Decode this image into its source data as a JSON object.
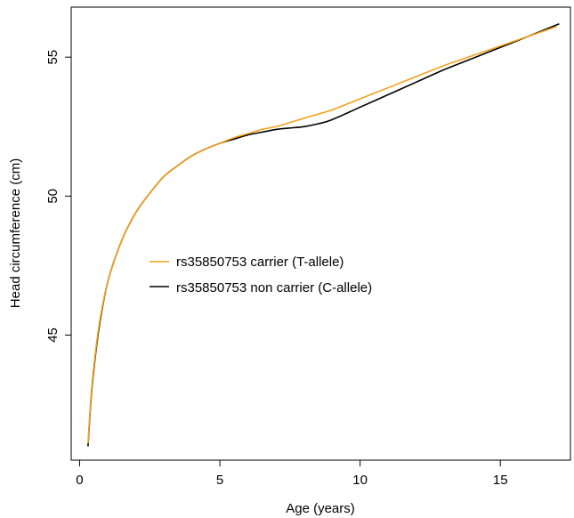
{
  "chart_data": {
    "type": "line",
    "title": "",
    "xlabel": "Age (years)",
    "ylabel": "Head circumference (cm)",
    "xlim": [
      -0.3,
      17.5
    ],
    "ylim": [
      40.5,
      56.8
    ],
    "xticks": [
      0,
      5,
      10,
      15
    ],
    "yticks": [
      45,
      50,
      55
    ],
    "grid": false,
    "legend_position": "center",
    "series": [
      {
        "name": "rs35850753 carrier (T-allele)",
        "color": "#F5A01A",
        "x": [
          0.3,
          0.4,
          0.5,
          0.7,
          1.0,
          1.5,
          2.0,
          2.5,
          3.0,
          3.5,
          4.0,
          4.5,
          5.0,
          5.5,
          6.0,
          6.5,
          7.0,
          7.5,
          8.0,
          8.5,
          9.0,
          10.0,
          11.0,
          12.0,
          13.0,
          14.0,
          15.0,
          16.0,
          17.0
        ],
        "y": [
          41.1,
          42.7,
          43.8,
          45.4,
          46.9,
          48.4,
          49.4,
          50.1,
          50.7,
          51.1,
          51.45,
          51.7,
          51.9,
          52.1,
          52.25,
          52.4,
          52.5,
          52.65,
          52.8,
          52.95,
          53.1,
          53.5,
          53.9,
          54.3,
          54.7,
          55.05,
          55.4,
          55.75,
          56.1
        ]
      },
      {
        "name": "rs35850753 non carrier (C-allele)",
        "color": "#000000",
        "x": [
          0.3,
          0.4,
          0.5,
          0.7,
          1.0,
          1.5,
          2.0,
          2.5,
          3.0,
          3.5,
          4.0,
          4.5,
          5.0,
          5.5,
          6.0,
          6.5,
          7.0,
          7.5,
          8.0,
          8.5,
          9.0,
          10.0,
          11.0,
          12.0,
          13.0,
          14.0,
          15.0,
          16.0,
          17.1
        ],
        "y": [
          41.0,
          42.6,
          43.7,
          45.3,
          46.9,
          48.4,
          49.4,
          50.1,
          50.7,
          51.1,
          51.45,
          51.7,
          51.9,
          52.05,
          52.2,
          52.3,
          52.4,
          52.45,
          52.5,
          52.6,
          52.75,
          53.2,
          53.65,
          54.1,
          54.55,
          54.95,
          55.35,
          55.75,
          56.2
        ]
      }
    ]
  }
}
